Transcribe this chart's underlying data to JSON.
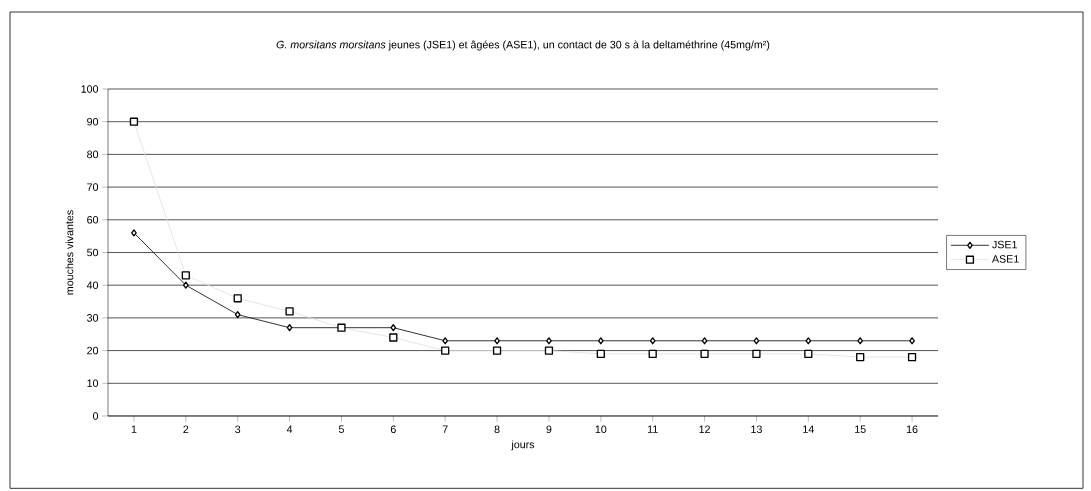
{
  "chart_data": {
    "type": "line",
    "title": "*G. morsitans morsitans* jeunes (JSE1) et âgées (ASE1), un contact de 30 s à la deltaméthrine (45mg/m²)",
    "xlabel": "jours",
    "ylabel": "mouches vivantes",
    "categories": [
      "1",
      "2",
      "3",
      "4",
      "5",
      "6",
      "7",
      "8",
      "9",
      "10",
      "11",
      "12",
      "13",
      "14",
      "15",
      "16"
    ],
    "series": [
      {
        "name": "JSE1",
        "color": "#000000",
        "marker": "diamond",
        "values": [
          56,
          40,
          31,
          27,
          27,
          27,
          23,
          23,
          23,
          23,
          23,
          23,
          23,
          23,
          23,
          23
        ]
      },
      {
        "name": "ASE1",
        "color": "#e0e0e0",
        "marker": "square",
        "values": [
          90,
          43,
          36,
          32,
          27,
          24,
          20,
          20,
          20,
          19,
          19,
          19,
          19,
          19,
          18,
          18
        ]
      }
    ],
    "ylim": [
      0,
      100
    ],
    "yticks": [
      0,
      10,
      20,
      30,
      40,
      50,
      60,
      70,
      80,
      90,
      100
    ],
    "grid": "y",
    "legend": "right"
  }
}
